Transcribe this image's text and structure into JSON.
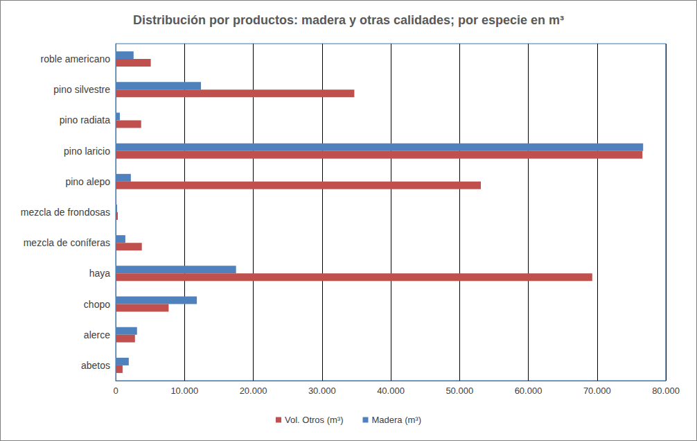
{
  "chart_data": {
    "type": "bar",
    "title": "Distribución por productos: madera y otras calidades; por especie en m³",
    "orientation": "horizontal",
    "categories": [
      "abetos",
      "alerce",
      "chopo",
      "haya",
      "mezcla de coníferas",
      "mezcla de frondosas",
      "pino alepo",
      "pino laricio",
      "pino radiata",
      "pino silvestre",
      "roble americano"
    ],
    "series": [
      {
        "name": "Madera (m³)",
        "color": "#4f81bd",
        "values": [
          1900,
          3100,
          11800,
          17500,
          1400,
          200,
          2200,
          76700,
          600,
          12400,
          2600
        ]
      },
      {
        "name": "Vol. Otros (m³)",
        "color": "#c0504d",
        "values": [
          1000,
          2800,
          7700,
          69300,
          3800,
          300,
          53100,
          76600,
          3700,
          34700,
          5100
        ]
      }
    ],
    "xlim": [
      0,
      80000
    ],
    "xticks": [
      0,
      {
        "value": 10000,
        "label": "10.000"
      },
      {
        "value": 20000,
        "label": "20.000"
      },
      {
        "value": 30000,
        "label": "30.000"
      },
      {
        "value": 40000,
        "label": "40.000"
      },
      {
        "value": 50000,
        "label": "50.000"
      },
      {
        "value": 60000,
        "label": "60.000"
      },
      {
        "value": 70000,
        "label": "70.000"
      },
      {
        "value": 80000,
        "label": "80.000"
      }
    ],
    "grid": true,
    "legend": "bottom"
  }
}
